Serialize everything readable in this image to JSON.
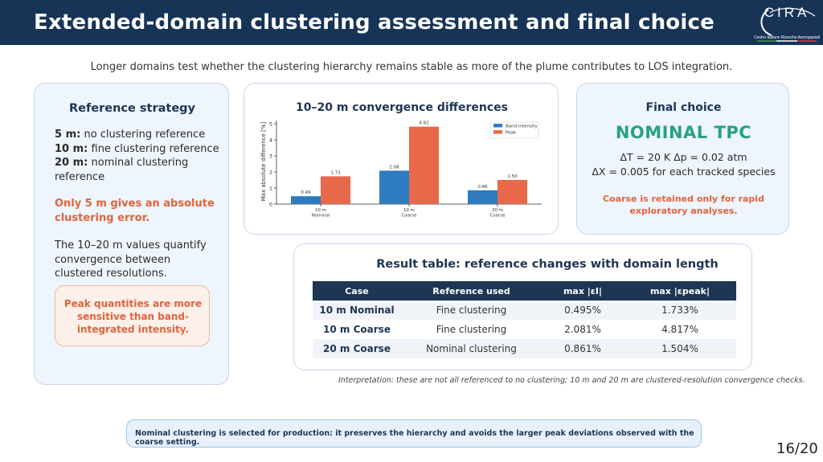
{
  "header": {
    "title": "Extended-domain clustering assessment and final choice"
  },
  "logo": {
    "word": "CIRA",
    "subtitle": "Centro Italiano Ricerche Aerospaziali"
  },
  "intro": "Longer domains test whether the clustering hierarchy remains stable as more of the plume contributes to LOS integration.",
  "reference": {
    "title": "Reference strategy",
    "items": [
      {
        "key": "5 m:",
        "text": " no clustering reference"
      },
      {
        "key": "10 m:",
        "text": " fine clustering reference"
      },
      {
        "key": "20 m:",
        "text": " nominal clustering reference"
      }
    ],
    "warning": "Only 5 m gives an absolute clustering error.",
    "paragraph": "The 10–20 m values quantify convergence between clustered resolutions.",
    "note": "Peak quantities are more sensitive than band-integrated intensity."
  },
  "chart_data": {
    "type": "bar",
    "title": "10–20 m convergence differences",
    "xlabel": "",
    "ylabel": "Max absolute difference [%]",
    "categories": [
      "10 m\nNominal",
      "10 m\nCoarse",
      "20 m\nCoarse"
    ],
    "category_lines": [
      [
        "10 m",
        "Nominal"
      ],
      [
        "10 m",
        "Coarse"
      ],
      [
        "20 m",
        "Coarse"
      ]
    ],
    "series": [
      {
        "name": "Band intensity",
        "values": [
          0.49,
          2.08,
          0.86
        ],
        "color": "#2e7bbf"
      },
      {
        "name": "Peak",
        "values": [
          1.73,
          4.82,
          1.5
        ],
        "color": "#e8694a"
      }
    ],
    "data_labels": [
      [
        "0.49",
        "2.08",
        "0.86"
      ],
      [
        "1.73",
        "4.82",
        "1.50"
      ]
    ],
    "ylim": [
      0,
      5.2
    ],
    "yticks": [
      0,
      1,
      2,
      3,
      4,
      5
    ],
    "grid": false,
    "legend": "top-right"
  },
  "final": {
    "title": "Final choice",
    "choice": "NOMINAL TPC",
    "line1": "ΔT = 20 K   Δp = 0.02 atm",
    "line2": "ΔX = 0.005 for each tracked species",
    "warning": "Coarse is retained only for rapid exploratory analyses."
  },
  "table": {
    "title": "Result table: reference changes with domain length",
    "headers": [
      "Case",
      "Reference used",
      "max |εI|",
      "max |εpeak|"
    ],
    "rows": [
      [
        "10 m Nominal",
        "Fine clustering",
        "0.495%",
        "1.733%"
      ],
      [
        "10 m Coarse",
        "Fine clustering",
        "2.081%",
        "4.817%"
      ],
      [
        "20 m Coarse",
        "Nominal clustering",
        "0.861%",
        "1.504%"
      ]
    ]
  },
  "interpretation": "Interpretation: these are not all referenced to no clustering; 10 m and 20 m are clustered-resolution convergence checks.",
  "bottom_note": "Nominal clustering is selected for production: it preserves the hierarchy and avoids the larger peak deviations observed with the coarse setting.",
  "page": "16/20",
  "colors": {
    "navy": "#173457",
    "accent_orange": "#e0643c",
    "accent_green": "#27a182",
    "blue": "#2e7bbf"
  }
}
